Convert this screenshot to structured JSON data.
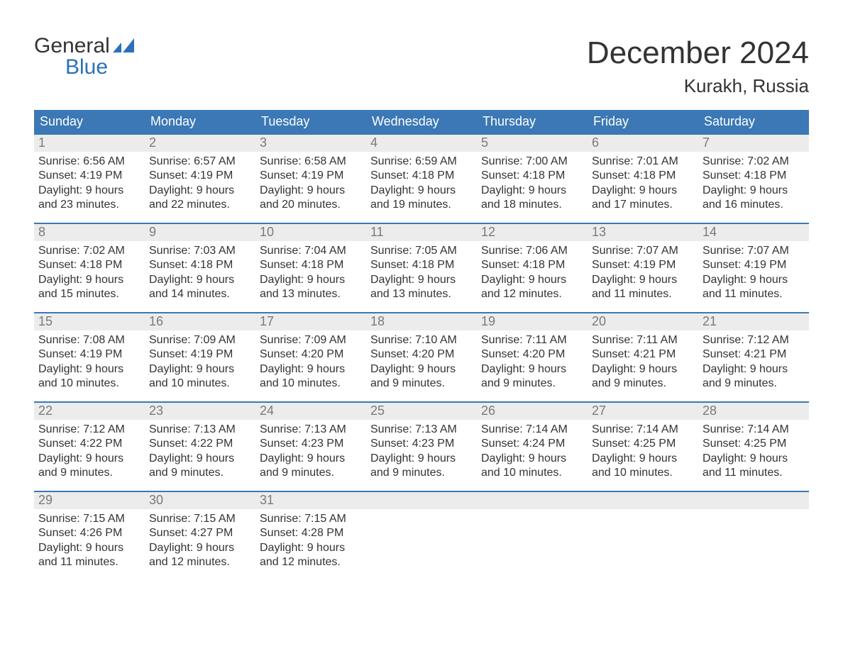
{
  "brand": {
    "line1": "General",
    "line2": "Blue"
  },
  "title": {
    "month": "December 2024",
    "location": "Kurakh, Russia"
  },
  "colors": {
    "header_bg": "#3b78b5",
    "header_text": "#ffffff",
    "daynum_bg": "#ececec",
    "daynum_text": "#7a7a7a",
    "body_text": "#333333",
    "week_rule": "#3b78b5",
    "brand_blue": "#2b71b8",
    "page_bg": "#ffffff"
  },
  "dow": [
    "Sunday",
    "Monday",
    "Tuesday",
    "Wednesday",
    "Thursday",
    "Friday",
    "Saturday"
  ],
  "weeks": [
    [
      {
        "n": "1",
        "sr": "Sunrise: 6:56 AM",
        "ss": "Sunset: 4:19 PM",
        "d1": "Daylight: 9 hours",
        "d2": "and 23 minutes."
      },
      {
        "n": "2",
        "sr": "Sunrise: 6:57 AM",
        "ss": "Sunset: 4:19 PM",
        "d1": "Daylight: 9 hours",
        "d2": "and 22 minutes."
      },
      {
        "n": "3",
        "sr": "Sunrise: 6:58 AM",
        "ss": "Sunset: 4:19 PM",
        "d1": "Daylight: 9 hours",
        "d2": "and 20 minutes."
      },
      {
        "n": "4",
        "sr": "Sunrise: 6:59 AM",
        "ss": "Sunset: 4:18 PM",
        "d1": "Daylight: 9 hours",
        "d2": "and 19 minutes."
      },
      {
        "n": "5",
        "sr": "Sunrise: 7:00 AM",
        "ss": "Sunset: 4:18 PM",
        "d1": "Daylight: 9 hours",
        "d2": "and 18 minutes."
      },
      {
        "n": "6",
        "sr": "Sunrise: 7:01 AM",
        "ss": "Sunset: 4:18 PM",
        "d1": "Daylight: 9 hours",
        "d2": "and 17 minutes."
      },
      {
        "n": "7",
        "sr": "Sunrise: 7:02 AM",
        "ss": "Sunset: 4:18 PM",
        "d1": "Daylight: 9 hours",
        "d2": "and 16 minutes."
      }
    ],
    [
      {
        "n": "8",
        "sr": "Sunrise: 7:02 AM",
        "ss": "Sunset: 4:18 PM",
        "d1": "Daylight: 9 hours",
        "d2": "and 15 minutes."
      },
      {
        "n": "9",
        "sr": "Sunrise: 7:03 AM",
        "ss": "Sunset: 4:18 PM",
        "d1": "Daylight: 9 hours",
        "d2": "and 14 minutes."
      },
      {
        "n": "10",
        "sr": "Sunrise: 7:04 AM",
        "ss": "Sunset: 4:18 PM",
        "d1": "Daylight: 9 hours",
        "d2": "and 13 minutes."
      },
      {
        "n": "11",
        "sr": "Sunrise: 7:05 AM",
        "ss": "Sunset: 4:18 PM",
        "d1": "Daylight: 9 hours",
        "d2": "and 13 minutes."
      },
      {
        "n": "12",
        "sr": "Sunrise: 7:06 AM",
        "ss": "Sunset: 4:18 PM",
        "d1": "Daylight: 9 hours",
        "d2": "and 12 minutes."
      },
      {
        "n": "13",
        "sr": "Sunrise: 7:07 AM",
        "ss": "Sunset: 4:19 PM",
        "d1": "Daylight: 9 hours",
        "d2": "and 11 minutes."
      },
      {
        "n": "14",
        "sr": "Sunrise: 7:07 AM",
        "ss": "Sunset: 4:19 PM",
        "d1": "Daylight: 9 hours",
        "d2": "and 11 minutes."
      }
    ],
    [
      {
        "n": "15",
        "sr": "Sunrise: 7:08 AM",
        "ss": "Sunset: 4:19 PM",
        "d1": "Daylight: 9 hours",
        "d2": "and 10 minutes."
      },
      {
        "n": "16",
        "sr": "Sunrise: 7:09 AM",
        "ss": "Sunset: 4:19 PM",
        "d1": "Daylight: 9 hours",
        "d2": "and 10 minutes."
      },
      {
        "n": "17",
        "sr": "Sunrise: 7:09 AM",
        "ss": "Sunset: 4:20 PM",
        "d1": "Daylight: 9 hours",
        "d2": "and 10 minutes."
      },
      {
        "n": "18",
        "sr": "Sunrise: 7:10 AM",
        "ss": "Sunset: 4:20 PM",
        "d1": "Daylight: 9 hours",
        "d2": "and 9 minutes."
      },
      {
        "n": "19",
        "sr": "Sunrise: 7:11 AM",
        "ss": "Sunset: 4:20 PM",
        "d1": "Daylight: 9 hours",
        "d2": "and 9 minutes."
      },
      {
        "n": "20",
        "sr": "Sunrise: 7:11 AM",
        "ss": "Sunset: 4:21 PM",
        "d1": "Daylight: 9 hours",
        "d2": "and 9 minutes."
      },
      {
        "n": "21",
        "sr": "Sunrise: 7:12 AM",
        "ss": "Sunset: 4:21 PM",
        "d1": "Daylight: 9 hours",
        "d2": "and 9 minutes."
      }
    ],
    [
      {
        "n": "22",
        "sr": "Sunrise: 7:12 AM",
        "ss": "Sunset: 4:22 PM",
        "d1": "Daylight: 9 hours",
        "d2": "and 9 minutes."
      },
      {
        "n": "23",
        "sr": "Sunrise: 7:13 AM",
        "ss": "Sunset: 4:22 PM",
        "d1": "Daylight: 9 hours",
        "d2": "and 9 minutes."
      },
      {
        "n": "24",
        "sr": "Sunrise: 7:13 AM",
        "ss": "Sunset: 4:23 PM",
        "d1": "Daylight: 9 hours",
        "d2": "and 9 minutes."
      },
      {
        "n": "25",
        "sr": "Sunrise: 7:13 AM",
        "ss": "Sunset: 4:23 PM",
        "d1": "Daylight: 9 hours",
        "d2": "and 9 minutes."
      },
      {
        "n": "26",
        "sr": "Sunrise: 7:14 AM",
        "ss": "Sunset: 4:24 PM",
        "d1": "Daylight: 9 hours",
        "d2": "and 10 minutes."
      },
      {
        "n": "27",
        "sr": "Sunrise: 7:14 AM",
        "ss": "Sunset: 4:25 PM",
        "d1": "Daylight: 9 hours",
        "d2": "and 10 minutes."
      },
      {
        "n": "28",
        "sr": "Sunrise: 7:14 AM",
        "ss": "Sunset: 4:25 PM",
        "d1": "Daylight: 9 hours",
        "d2": "and 11 minutes."
      }
    ],
    [
      {
        "n": "29",
        "sr": "Sunrise: 7:15 AM",
        "ss": "Sunset: 4:26 PM",
        "d1": "Daylight: 9 hours",
        "d2": "and 11 minutes."
      },
      {
        "n": "30",
        "sr": "Sunrise: 7:15 AM",
        "ss": "Sunset: 4:27 PM",
        "d1": "Daylight: 9 hours",
        "d2": "and 12 minutes."
      },
      {
        "n": "31",
        "sr": "Sunrise: 7:15 AM",
        "ss": "Sunset: 4:28 PM",
        "d1": "Daylight: 9 hours",
        "d2": "and 12 minutes."
      },
      {
        "empty": true
      },
      {
        "empty": true
      },
      {
        "empty": true
      },
      {
        "empty": true
      }
    ]
  ]
}
